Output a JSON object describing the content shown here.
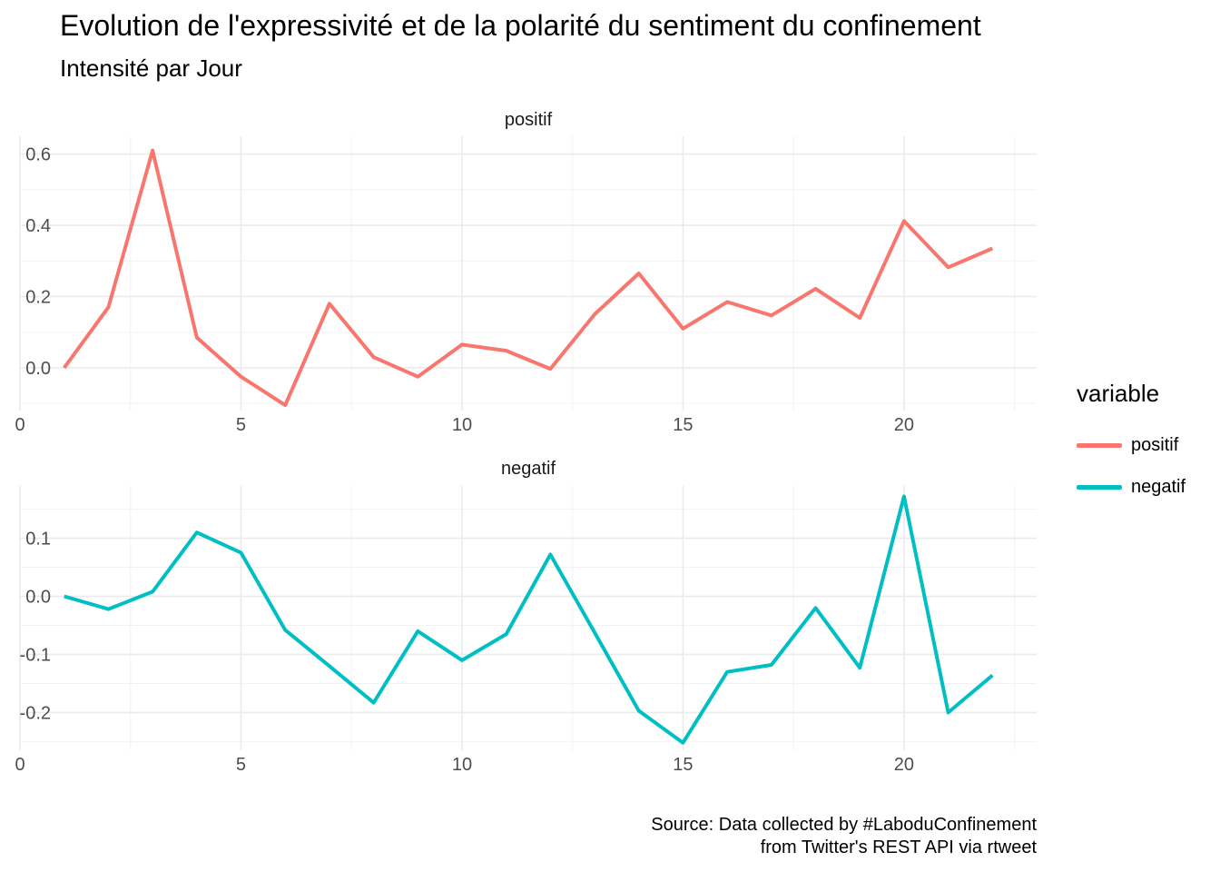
{
  "chart_data": {
    "type": "line",
    "title": "Evolution de l'expressivité et de la polarité du sentiment du confinement",
    "subtitle": "Intensité par Jour",
    "caption_lines": [
      "Source: Data collected by #LaboduConfinement",
      "from Twitter's REST API via rtweet"
    ],
    "legend": {
      "title": "variable",
      "placement": "right",
      "items": [
        {
          "label": "positif",
          "color": "#F8766D"
        },
        {
          "label": "negatif",
          "color": "#00BFC4"
        }
      ]
    },
    "grid": true,
    "x": [
      1,
      2,
      3,
      4,
      5,
      6,
      7,
      8,
      9,
      10,
      11,
      12,
      13,
      14,
      15,
      16,
      17,
      18,
      19,
      20,
      21,
      22
    ],
    "xlim": [
      0,
      23
    ],
    "xticks": [
      0,
      5,
      10,
      15,
      20
    ],
    "panels": [
      {
        "strip": "positif",
        "color": "#F8766D",
        "ylim": [
          -0.12,
          0.65
        ],
        "yticks": [
          0.0,
          0.2,
          0.4,
          0.6
        ],
        "ytick_labels": [
          "0.0",
          "0.2",
          "0.4",
          "0.6"
        ],
        "values": [
          0.0,
          0.17,
          0.61,
          0.085,
          -0.025,
          -0.105,
          0.18,
          0.03,
          -0.025,
          0.065,
          0.048,
          -0.003,
          0.15,
          0.265,
          0.11,
          0.185,
          0.147,
          0.222,
          0.14,
          0.412,
          0.282,
          0.335
        ]
      },
      {
        "strip": "negatif",
        "color": "#00BFC4",
        "ylim": [
          -0.265,
          0.19
        ],
        "yticks": [
          -0.2,
          -0.1,
          0.0,
          0.1
        ],
        "ytick_labels": [
          "-0.2",
          "-0.1",
          "0.0",
          "0.1"
        ],
        "values": [
          0.0,
          -0.022,
          0.008,
          0.11,
          0.075,
          -0.058,
          -0.12,
          -0.183,
          -0.06,
          -0.11,
          -0.065,
          0.072,
          -0.062,
          -0.197,
          -0.252,
          -0.13,
          -0.118,
          -0.02,
          -0.123,
          0.172,
          -0.2,
          -0.136
        ]
      }
    ]
  }
}
